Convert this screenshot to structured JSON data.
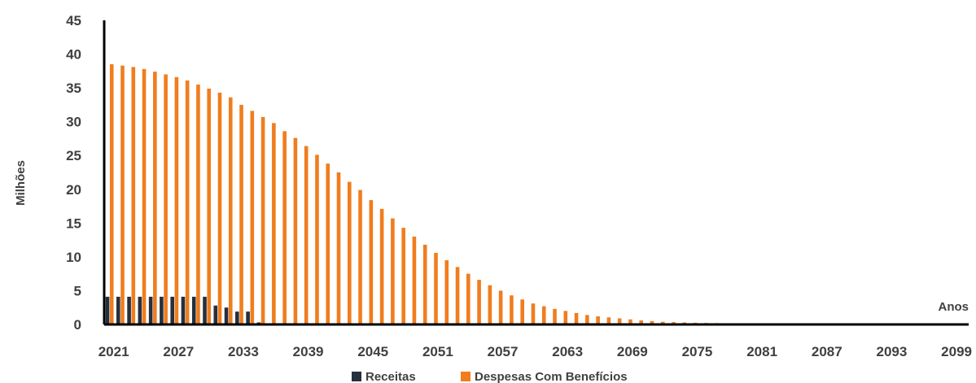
{
  "chart_data": {
    "type": "bar",
    "title": "",
    "xlabel": "Anos",
    "ylabel": "Milhões",
    "ylim": [
      0,
      45
    ],
    "yticks": [
      "0",
      "5",
      "10",
      "15",
      "20",
      "25",
      "30",
      "35",
      "40",
      "45"
    ],
    "xticks": [
      "2021",
      "2027",
      "2033",
      "2039",
      "2045",
      "2051",
      "2057",
      "2063",
      "2069",
      "2075",
      "2081",
      "2087",
      "2093",
      "2099"
    ],
    "x": [
      2021,
      2022,
      2023,
      2024,
      2025,
      2026,
      2027,
      2028,
      2029,
      2030,
      2031,
      2032,
      2033,
      2034,
      2035,
      2036,
      2037,
      2038,
      2039,
      2040,
      2041,
      2042,
      2043,
      2044,
      2045,
      2046,
      2047,
      2048,
      2049,
      2050,
      2051,
      2052,
      2053,
      2054,
      2055,
      2056,
      2057,
      2058,
      2059,
      2060,
      2061,
      2062,
      2063,
      2064,
      2065,
      2066,
      2067,
      2068,
      2069,
      2070,
      2071,
      2072,
      2073,
      2074,
      2075,
      2076,
      2077,
      2078,
      2079,
      2080,
      2081,
      2082,
      2083,
      2084,
      2085,
      2086,
      2087,
      2088,
      2089,
      2090,
      2091,
      2092,
      2093,
      2094,
      2095,
      2096,
      2097,
      2098,
      2099,
      2100
    ],
    "grid": false,
    "legend_position": "bottom",
    "series": [
      {
        "name": "Receitas",
        "color": "#262f3d",
        "values": [
          4.1,
          4.1,
          4.1,
          4.1,
          4.1,
          4.1,
          4.1,
          4.1,
          4.1,
          4.1,
          2.8,
          2.5,
          1.9,
          1.9,
          0.3,
          0,
          0,
          0,
          0,
          0,
          0,
          0,
          0,
          0,
          0,
          0,
          0,
          0,
          0,
          0,
          0,
          0,
          0,
          0,
          0,
          0,
          0,
          0,
          0,
          0,
          0,
          0,
          0,
          0,
          0,
          0,
          0,
          0,
          0,
          0,
          0,
          0,
          0,
          0,
          0,
          0,
          0,
          0,
          0,
          0,
          0,
          0,
          0,
          0,
          0,
          0,
          0,
          0,
          0,
          0,
          0,
          0,
          0,
          0,
          0,
          0,
          0,
          0,
          0,
          0
        ]
      },
      {
        "name": "Despesas Com Benefícios",
        "color": "#f07d1e",
        "values": [
          38.5,
          38.3,
          38.1,
          37.8,
          37.4,
          37.0,
          36.6,
          36.1,
          35.5,
          34.9,
          34.3,
          33.6,
          32.5,
          31.6,
          30.7,
          29.8,
          28.6,
          27.6,
          26.4,
          25.1,
          23.8,
          22.5,
          21.1,
          19.9,
          18.4,
          17.1,
          15.7,
          14.3,
          13.0,
          11.8,
          10.6,
          9.5,
          8.5,
          7.5,
          6.6,
          5.8,
          5.0,
          4.3,
          3.7,
          3.1,
          2.7,
          2.3,
          2.0,
          1.7,
          1.4,
          1.2,
          1.05,
          0.9,
          0.75,
          0.6,
          0.5,
          0.4,
          0.35,
          0.3,
          0.25,
          0.22,
          0.2,
          0.18,
          0.15,
          0.12,
          0.1,
          0,
          0,
          0,
          0,
          0,
          0,
          0,
          0,
          0,
          0,
          0,
          0,
          0,
          0,
          0,
          0,
          0,
          0,
          0
        ]
      }
    ]
  }
}
